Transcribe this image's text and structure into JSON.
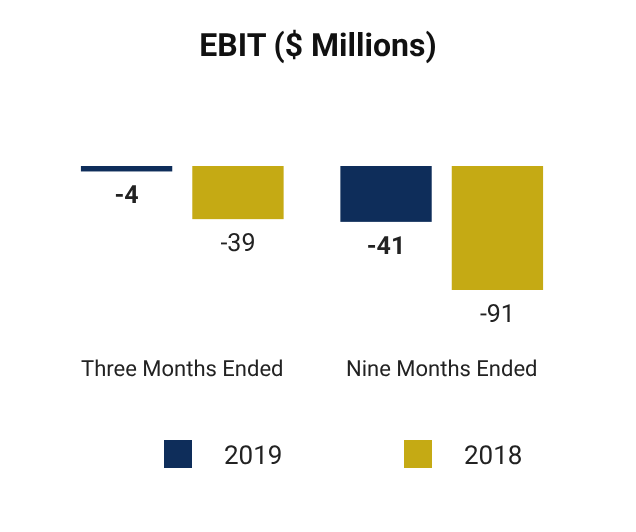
{
  "chart_data": {
    "type": "bar",
    "title": "EBIT ($ Millions)",
    "categories": [
      "Three Months Ended",
      "Nine Months Ended"
    ],
    "series": [
      {
        "name": "2019",
        "color": "#0e2d5a",
        "values": [
          -4,
          -41
        ]
      },
      {
        "name": "2018",
        "color": "#c5aa14",
        "values": [
          -39,
          -91
        ]
      }
    ],
    "data_labels": true,
    "legend": "bottom"
  }
}
